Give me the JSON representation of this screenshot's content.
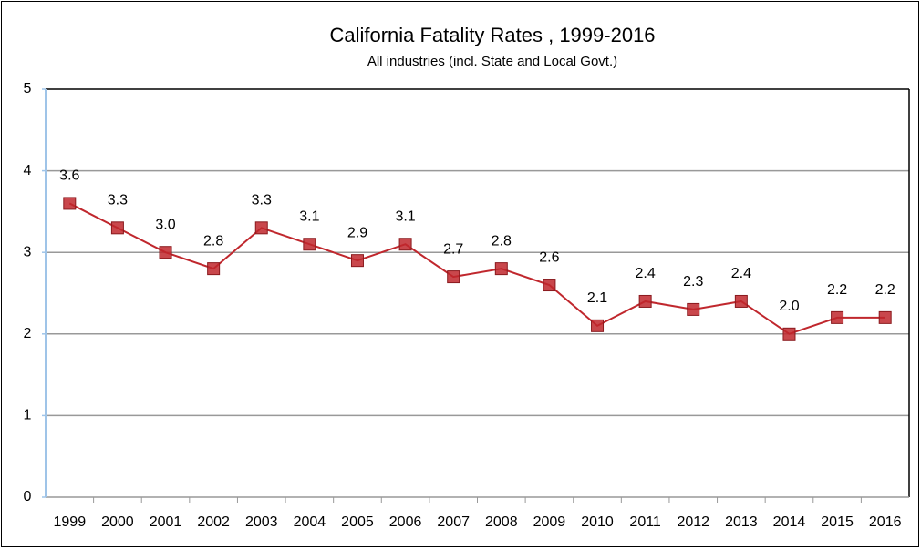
{
  "chart_data": {
    "type": "line",
    "title": "California Fatality Rates , 1999-2016",
    "subtitle": "All industries (incl. State and Local Govt.)",
    "categories": [
      "1999",
      "2000",
      "2001",
      "2002",
      "2003",
      "2004",
      "2005",
      "2006",
      "2007",
      "2008",
      "2009",
      "2010",
      "2011",
      "2012",
      "2013",
      "2014",
      "2015",
      "2016"
    ],
    "series": [
      {
        "name": "Fatality rate",
        "color": "#c0272d",
        "values": [
          3.6,
          3.3,
          3.0,
          2.8,
          3.3,
          3.1,
          2.9,
          3.1,
          2.7,
          2.8,
          2.6,
          2.1,
          2.4,
          2.3,
          2.4,
          2.0,
          2.2,
          2.2
        ],
        "value_labels": [
          "3.6",
          "3.3",
          "3.0",
          "2.8",
          "3.3",
          "3.1",
          "2.9",
          "3.1",
          "2.7",
          "2.8",
          "2.6",
          "2.1",
          "2.4",
          "2.3",
          "2.4",
          "2.0",
          "2.2",
          "2.2"
        ]
      }
    ],
    "ylim": [
      0,
      5
    ],
    "yticks": [
      0,
      1,
      2,
      3,
      4,
      5
    ],
    "grid": true
  }
}
